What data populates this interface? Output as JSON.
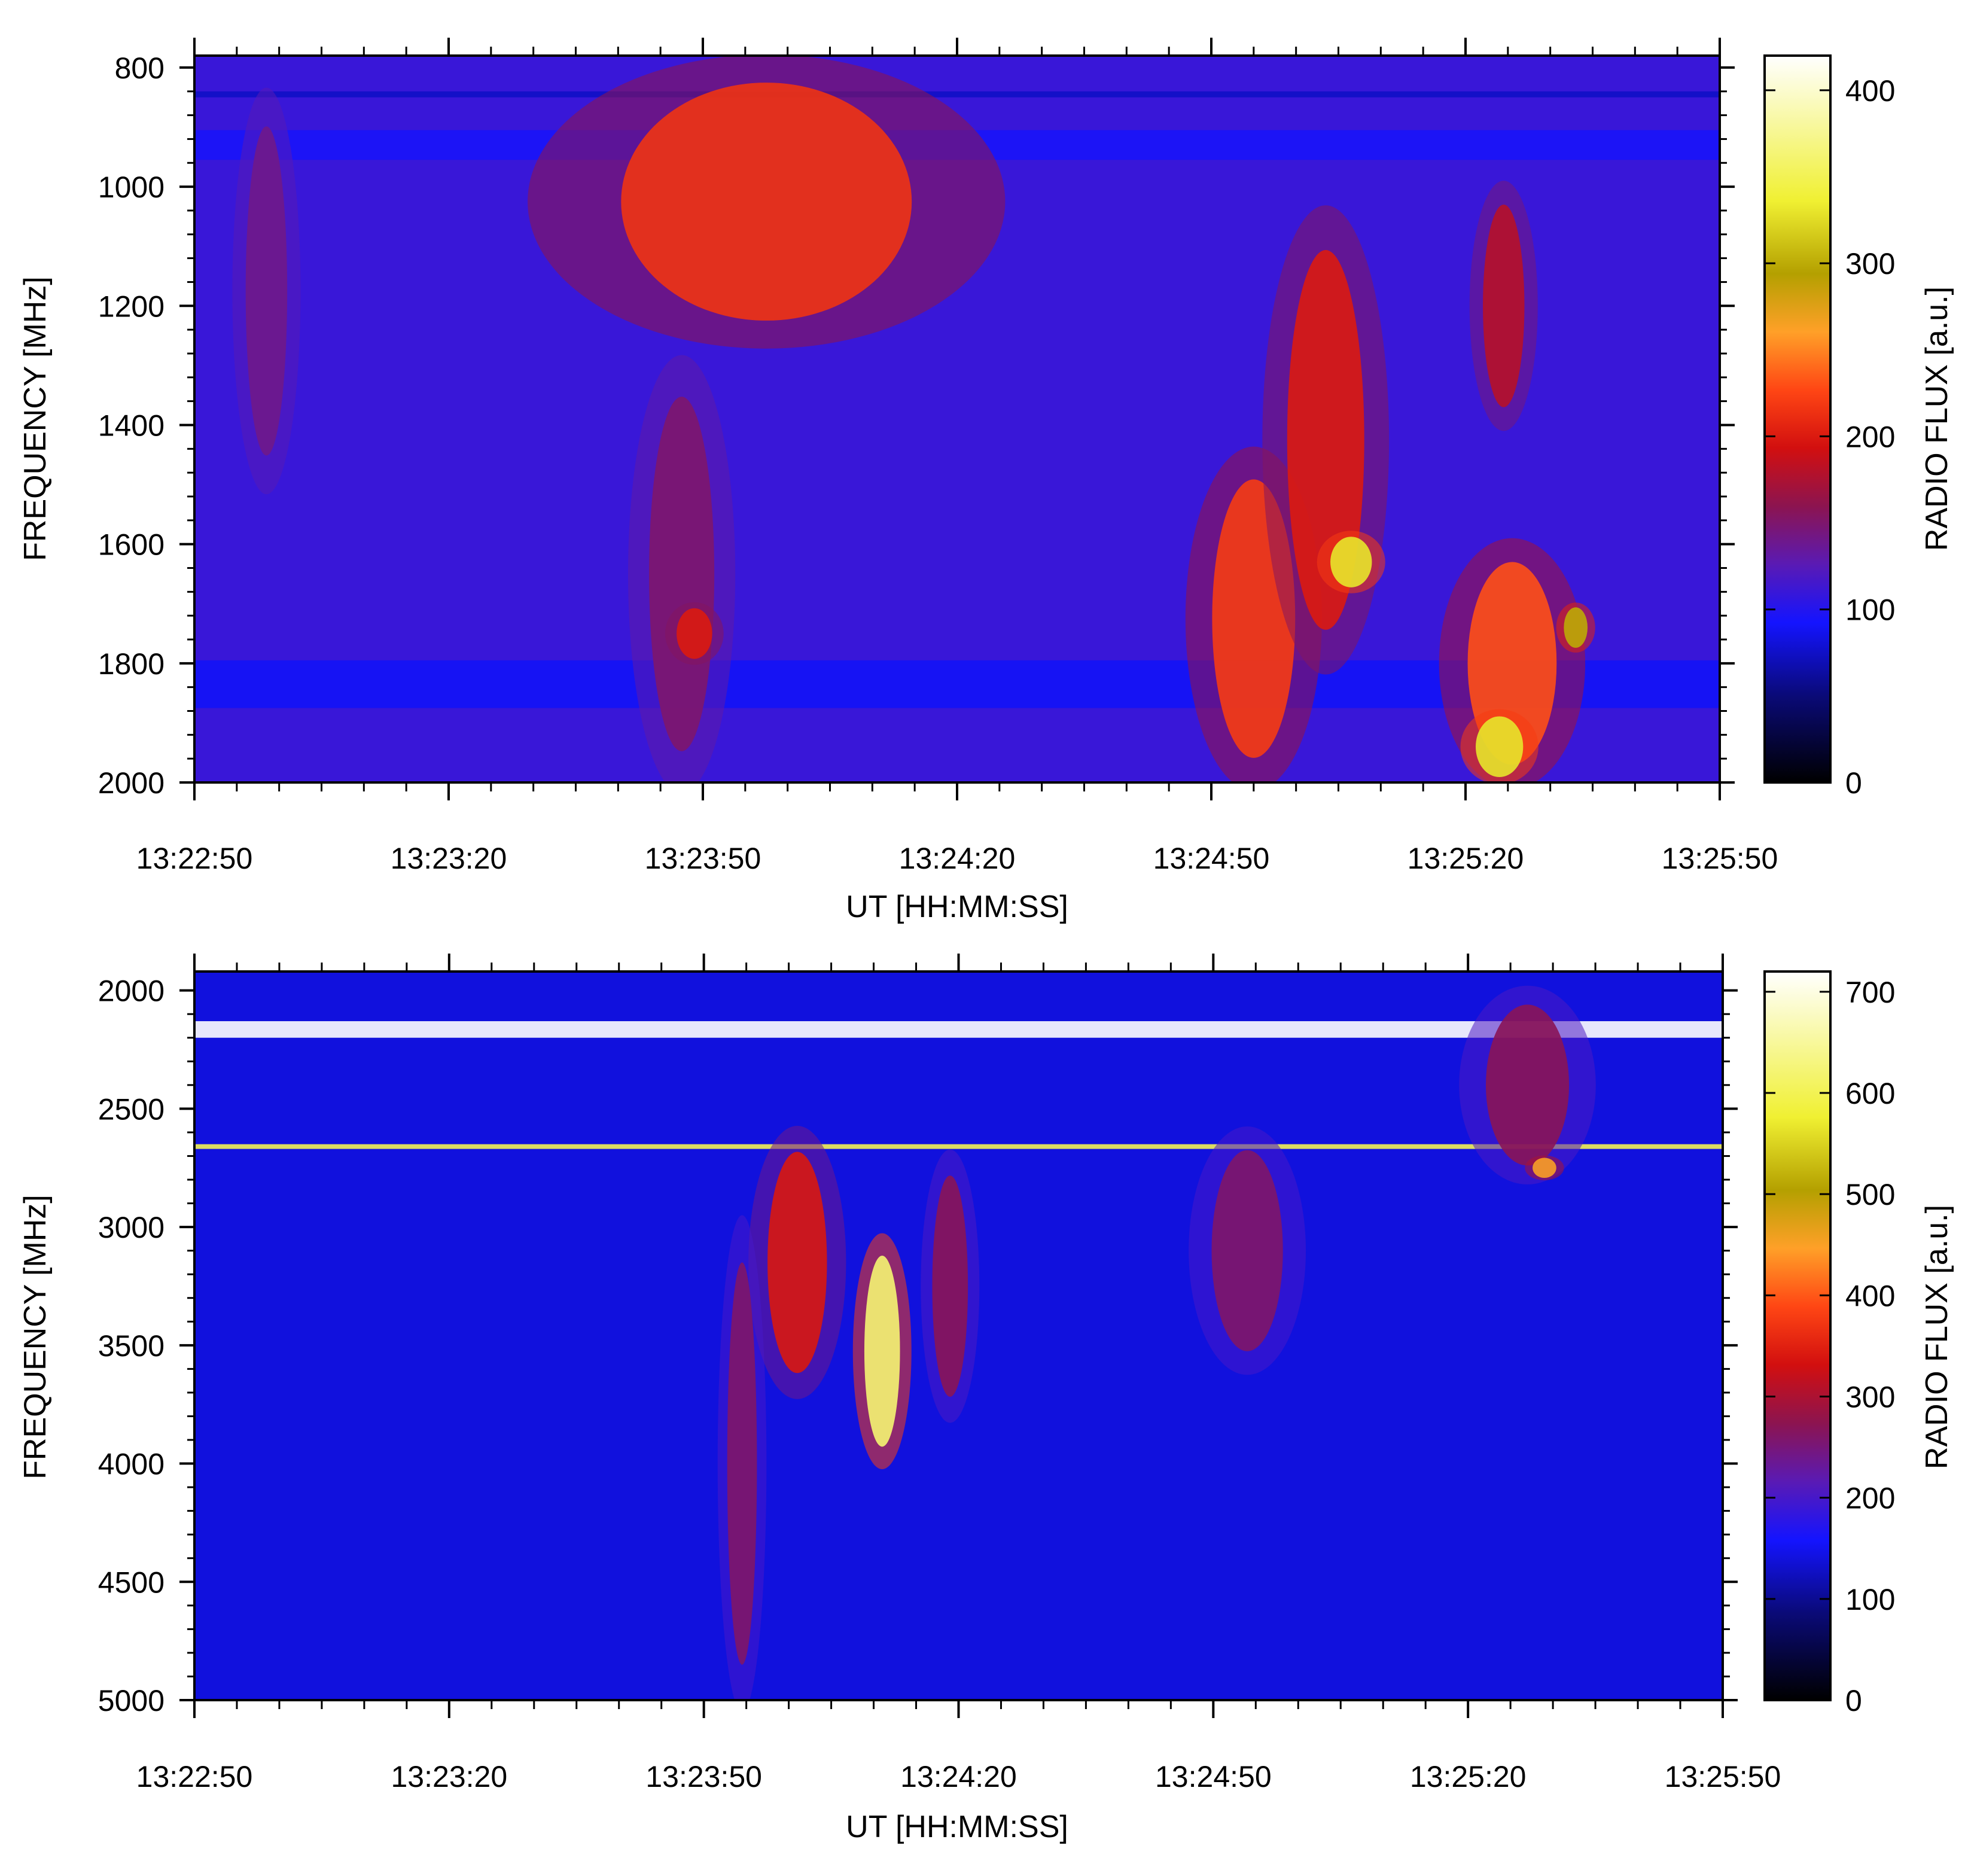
{
  "chart_data": [
    {
      "type": "heatmap",
      "panel": "top",
      "xlabel": "UT [HH:MM:SS]",
      "ylabel": "FREQUENCY [MHz]",
      "colorbar_label": "RADIO FLUX [a.u.]",
      "x_ticks": [
        "13:22:50",
        "13:23:20",
        "13:23:50",
        "13:24:20",
        "13:24:50",
        "13:25:20",
        "13:25:50"
      ],
      "x_range_seconds": [
        0,
        180
      ],
      "y_ticks": [
        800,
        1000,
        1200,
        1400,
        1600,
        1800,
        2000
      ],
      "ylim": [
        2000,
        780
      ],
      "y_inverted": true,
      "colorbar_ticks": [
        0,
        100,
        200,
        300,
        400
      ],
      "colorbar_range": [
        0,
        420
      ],
      "colormap": "black-blue-purple-red-orange-yellow-white",
      "background_level": 110,
      "features": [
        {
          "x0": 43,
          "x1": 92,
          "f0": 790,
          "f1": 1260,
          "level": 215
        },
        {
          "x0": 52,
          "x1": 63,
          "f0": 1300,
          "f1": 2000,
          "level": 150
        },
        {
          "x0": 56,
          "x1": 62,
          "f0": 1700,
          "f1": 1800,
          "level": 200
        },
        {
          "x0": 5,
          "x1": 12,
          "f0": 850,
          "f1": 1500,
          "level": 140
        },
        {
          "x0": 118,
          "x1": 132,
          "f0": 1450,
          "f1": 2000,
          "level": 220
        },
        {
          "x0": 127,
          "x1": 140,
          "f0": 1050,
          "f1": 1800,
          "level": 200
        },
        {
          "x0": 133,
          "x1": 140,
          "f0": 1580,
          "f1": 1680,
          "level": 330
        },
        {
          "x0": 148,
          "x1": 163,
          "f0": 1600,
          "f1": 2000,
          "level": 230
        },
        {
          "x0": 150,
          "x1": 158,
          "f0": 1880,
          "f1": 2000,
          "level": 330
        },
        {
          "x0": 161,
          "x1": 165,
          "f0": 1700,
          "f1": 1780,
          "level": 300
        },
        {
          "x0": 151,
          "x1": 158,
          "f0": 1000,
          "f1": 1400,
          "level": 180
        }
      ],
      "bands": [
        {
          "f0": 840,
          "f1": 850,
          "level": 75
        },
        {
          "f0": 905,
          "f1": 955,
          "level": 95
        },
        {
          "f0": 1795,
          "f1": 1875,
          "level": 90
        }
      ]
    },
    {
      "type": "heatmap",
      "panel": "bottom",
      "xlabel": "UT [HH:MM:SS]",
      "ylabel": "FREQUENCY [MHz]",
      "colorbar_label": "RADIO FLUX [a.u.]",
      "x_ticks": [
        "13:22:50",
        "13:23:20",
        "13:23:50",
        "13:24:20",
        "13:24:50",
        "13:25:20",
        "13:25:50"
      ],
      "x_range_seconds": [
        0,
        180
      ],
      "y_ticks": [
        2000,
        2500,
        3000,
        3500,
        4000,
        4500,
        5000
      ],
      "ylim": [
        5000,
        1920
      ],
      "y_inverted": true,
      "colorbar_ticks": [
        0,
        100,
        200,
        300,
        400,
        500,
        600,
        700
      ],
      "colorbar_range": [
        0,
        720
      ],
      "colormap": "black-blue-purple-red-orange-yellow-white",
      "background_level": 140,
      "features": [
        {
          "x0": 66,
          "x1": 76,
          "f0": 2600,
          "f1": 3700,
          "level": 340
        },
        {
          "x0": 78,
          "x1": 84,
          "f0": 3050,
          "f1": 4000,
          "level": 620
        },
        {
          "x0": 62,
          "x1": 67,
          "f0": 3000,
          "f1": 5000,
          "level": 260
        },
        {
          "x0": 86,
          "x1": 92,
          "f0": 2700,
          "f1": 3800,
          "level": 270
        },
        {
          "x0": 118,
          "x1": 130,
          "f0": 2600,
          "f1": 3600,
          "level": 260
        },
        {
          "x0": 150,
          "x1": 164,
          "f0": 2000,
          "f1": 2800,
          "level": 270
        },
        {
          "x0": 157,
          "x1": 161,
          "f0": 2700,
          "f1": 2800,
          "level": 450
        }
      ],
      "bands": [
        {
          "f0": 2130,
          "f1": 2200,
          "level": 720
        },
        {
          "f0": 2650,
          "f1": 2670,
          "level": 600
        }
      ]
    }
  ]
}
